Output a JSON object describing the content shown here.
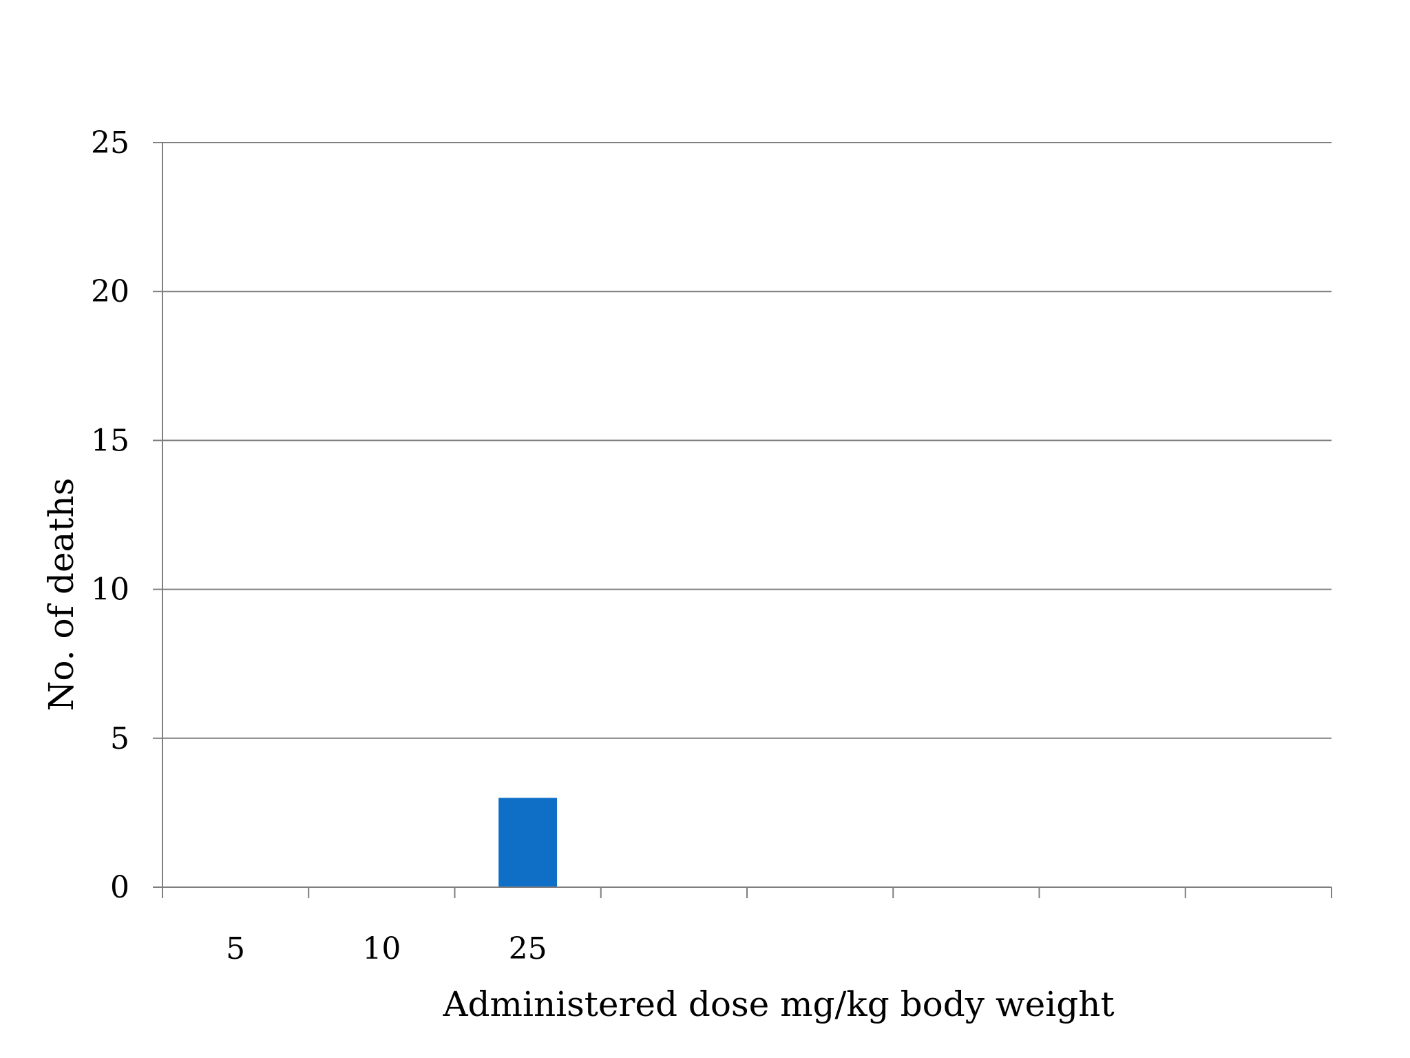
{
  "chart_data": {
    "type": "bar",
    "categories": [
      "5",
      "10",
      "25",
      "",
      "",
      "",
      "",
      ""
    ],
    "series": [
      {
        "values": [
          0,
          0,
          3,
          null,
          null,
          null,
          null,
          null
        ],
        "color": "#0F6FC6"
      }
    ],
    "title": "",
    "xlabel": "Administered dose mg/kg body weight",
    "ylabel": "No. of deaths",
    "ylim": [
      0,
      25
    ],
    "yticks": [
      0,
      5,
      10,
      15,
      20,
      25
    ],
    "grid": true,
    "legend": "none"
  }
}
